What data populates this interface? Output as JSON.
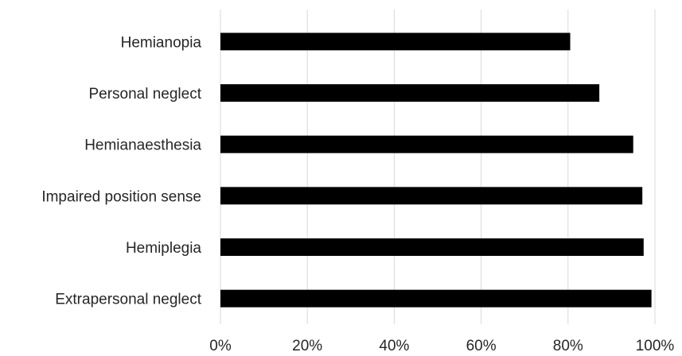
{
  "chart_data": {
    "type": "bar",
    "orientation": "horizontal",
    "categories": [
      "Hemianopia",
      "Personal neglect",
      "Hemianaesthesia",
      "Impaired position sense",
      "Hemiplegia",
      "Extrapersonal neglect"
    ],
    "values": [
      80.5,
      87.2,
      95.0,
      97.1,
      97.4,
      99.2
    ],
    "xlim": [
      0,
      100
    ],
    "x_ticks": [
      "0%",
      "20%",
      "40%",
      "60%",
      "80%",
      "100%"
    ],
    "grid": "vertical",
    "bar_color": "#000000",
    "title": "",
    "xlabel": "",
    "ylabel": ""
  }
}
